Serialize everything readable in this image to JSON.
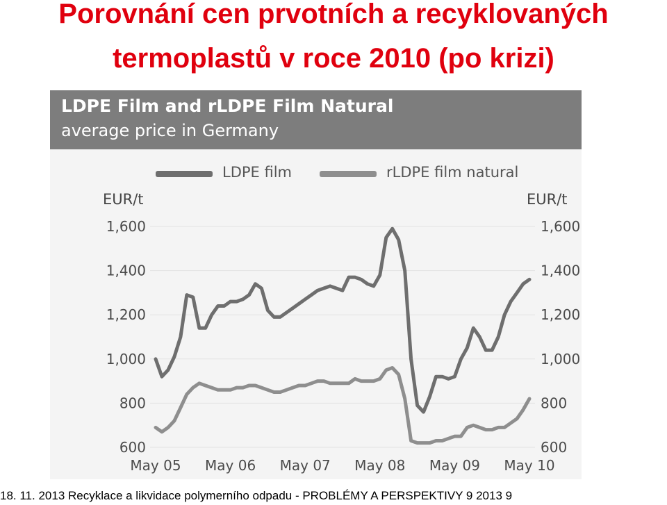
{
  "slide": {
    "title_line1": "Porovnání cen prvotních a recyklovaných",
    "title_line2": "termoplastů v roce 2010 (po krizi)",
    "title_color": "#e0000e"
  },
  "footer": {
    "text": "18. 11. 2013   Recyklace a likvidace polymerního odpadu - PROBLÉMY A PERSPEKTIVY 9 2013     9"
  },
  "chart_data": {
    "type": "line",
    "title": "LDPE Film and rLDPE Film Natural",
    "subtitle": "average price in Germany",
    "ylabel_left": "EUR/t",
    "ylabel_right": "EUR/t",
    "ylim": [
      600,
      1600
    ],
    "yticks": [
      "1,600",
      "1,400",
      "1,200",
      "1,000",
      "800",
      "600"
    ],
    "ytick_values": [
      1600,
      1400,
      1200,
      1000,
      800,
      600
    ],
    "xticks": [
      "May 05",
      "May 06",
      "May 07",
      "May 08",
      "May 09",
      "May 10"
    ],
    "xtick_index": [
      0,
      12,
      24,
      36,
      48,
      60
    ],
    "grid": true,
    "legend_position": "top",
    "series": [
      {
        "name": "LDPE film",
        "color": "#6e6e6e",
        "values": [
          1000,
          920,
          950,
          1010,
          1100,
          1290,
          1280,
          1140,
          1140,
          1200,
          1240,
          1240,
          1260,
          1260,
          1270,
          1290,
          1340,
          1320,
          1220,
          1190,
          1190,
          1210,
          1230,
          1250,
          1270,
          1290,
          1310,
          1320,
          1330,
          1320,
          1310,
          1370,
          1370,
          1360,
          1340,
          1330,
          1380,
          1550,
          1590,
          1540,
          1400,
          1000,
          790,
          760,
          830,
          920,
          920,
          910,
          920,
          1000,
          1050,
          1140,
          1100,
          1040,
          1040,
          1100,
          1200,
          1260,
          1300,
          1340,
          1360
        ]
      },
      {
        "name": "rLDPE film natural",
        "color": "#8e8e8e",
        "values": [
          690,
          670,
          690,
          720,
          780,
          840,
          870,
          890,
          880,
          870,
          860,
          860,
          860,
          870,
          870,
          880,
          880,
          870,
          860,
          850,
          850,
          860,
          870,
          880,
          880,
          890,
          900,
          900,
          890,
          890,
          890,
          890,
          910,
          900,
          900,
          900,
          910,
          950,
          960,
          930,
          820,
          630,
          620,
          620,
          620,
          630,
          630,
          640,
          650,
          650,
          690,
          700,
          690,
          680,
          680,
          690,
          690,
          710,
          730,
          770,
          820
        ]
      }
    ]
  }
}
